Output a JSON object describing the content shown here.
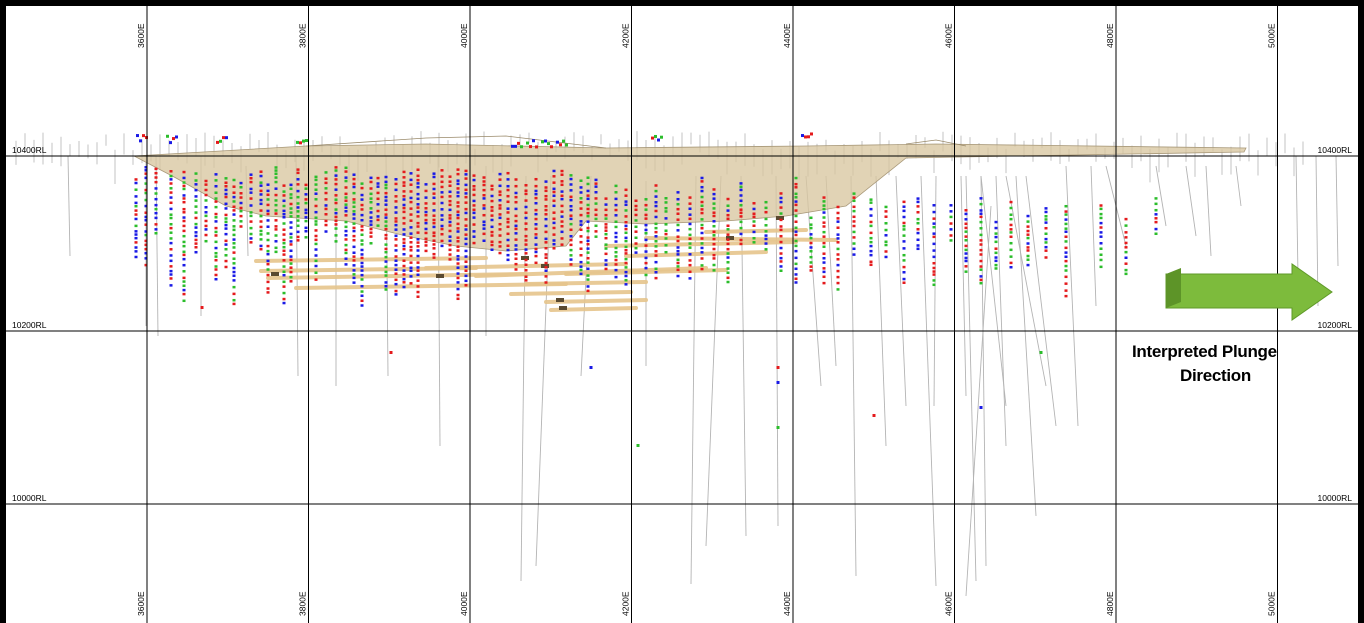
{
  "section": {
    "easting_labels": [
      "3600E",
      "3800E",
      "4000E",
      "4200E",
      "4400E",
      "4600E",
      "4800E",
      "5000E"
    ],
    "rl_labels": [
      "10400RL",
      "10200RL",
      "10000RL"
    ],
    "annotation": {
      "line1": "Interpreted Plunge",
      "line2": "Direction",
      "arrow_color": "#7dbb3c",
      "arrow_direction": "east"
    },
    "colors": {
      "grid": "#000000",
      "shell_fill": "#d9c7a0",
      "lodes": "#e6c58c",
      "drillholes": "#b4b4b4",
      "assay_high": "#e41a1c",
      "assay_mid": "#1a1ae6",
      "assay_low": "#2bbd2b"
    }
  }
}
